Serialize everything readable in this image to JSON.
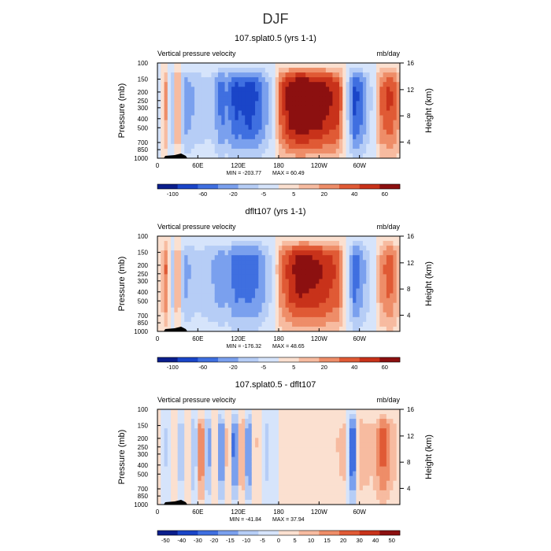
{
  "figure_title": "DJF",
  "chart_data": [
    {
      "type": "heatmap",
      "title": "107.splat0.5 (yrs 1-1)",
      "left_label": "Vertical pressure velocity",
      "right_label": "mb/day",
      "ylabel": "Pressure (mb)",
      "y2label": "Height (km)",
      "x_ticks": [
        "0",
        "60E",
        "120E",
        "180",
        "120W",
        "60W"
      ],
      "y_ticks": [
        "100",
        "150",
        "200",
        "250",
        "300",
        "400",
        "500",
        "700",
        "850",
        "1000"
      ],
      "y2_ticks": [
        "16",
        "12",
        "8",
        "4"
      ],
      "min_text": "MIN = -203.77",
      "max_text": "MAX = 60.49",
      "colorbar_labels": [
        "-100",
        "-60",
        "-20",
        "-5",
        "5",
        "20",
        "40",
        "60"
      ],
      "vmin": -203.77,
      "vmax": 60.49,
      "colors": {
        "neg": [
          "#0a1e8c",
          "#1a45c8",
          "#3f6fe0",
          "#7aa0ee",
          "#b6cdf6",
          "#d6e4fb"
        ],
        "pos": [
          "#fbe0d0",
          "#f7bba0",
          "#ee8d68",
          "#e05a35",
          "#c8321a",
          "#8c1010"
        ]
      },
      "profile_lon": [
        0,
        15,
        22,
        30,
        40,
        60,
        80,
        95,
        105,
        115,
        125,
        135,
        150,
        165,
        180,
        195,
        210,
        240,
        270,
        280,
        292,
        300,
        315,
        330,
        345,
        359
      ],
      "profile_omega": [
        -10,
        20,
        -40,
        35,
        -60,
        -35,
        -30,
        -75,
        -60,
        -95,
        -85,
        -100,
        -80,
        -40,
        20,
        38,
        45,
        40,
        30,
        -5,
        -90,
        -80,
        -30,
        20,
        30,
        15
      ],
      "profile_pressure": [
        100,
        150,
        200,
        250,
        300,
        400,
        500,
        700,
        850,
        1000
      ],
      "profile_weight": [
        0.05,
        0.25,
        0.55,
        0.75,
        0.9,
        1.0,
        0.95,
        0.85,
        0.6,
        0.25
      ]
    },
    {
      "type": "heatmap",
      "title": "dflt107 (yrs 1-1)",
      "left_label": "Vertical pressure velocity",
      "right_label": "mb/day",
      "ylabel": "Pressure (mb)",
      "y2label": "Height (km)",
      "x_ticks": [
        "0",
        "60E",
        "120E",
        "180",
        "120W",
        "60W"
      ],
      "y_ticks": [
        "100",
        "150",
        "200",
        "250",
        "300",
        "400",
        "500",
        "700",
        "850",
        "1000"
      ],
      "y2_ticks": [
        "16",
        "12",
        "8",
        "4"
      ],
      "min_text": "MIN = -176.32",
      "max_text": "MAX = 48.65",
      "colorbar_labels": [
        "-100",
        "-60",
        "-20",
        "-5",
        "5",
        "20",
        "40",
        "60"
      ],
      "vmin": -176.32,
      "vmax": 48.65,
      "colors": {
        "neg": [
          "#0a1e8c",
          "#1a45c8",
          "#3f6fe0",
          "#7aa0ee",
          "#b6cdf6",
          "#d6e4fb"
        ],
        "pos": [
          "#fbe0d0",
          "#f7bba0",
          "#ee8d68",
          "#e05a35",
          "#c8321a",
          "#8c1010"
        ]
      },
      "profile_lon": [
        0,
        15,
        22,
        30,
        40,
        60,
        80,
        95,
        105,
        115,
        125,
        135,
        150,
        165,
        180,
        195,
        210,
        240,
        270,
        280,
        292,
        300,
        315,
        330,
        345,
        359
      ],
      "profile_omega": [
        -5,
        25,
        -35,
        30,
        -55,
        -30,
        -45,
        -60,
        -50,
        -80,
        -75,
        -85,
        -70,
        -35,
        15,
        30,
        38,
        35,
        25,
        -5,
        -80,
        -70,
        -25,
        15,
        25,
        10
      ],
      "profile_pressure": [
        100,
        150,
        200,
        250,
        300,
        400,
        500,
        700,
        850,
        1000
      ],
      "profile_weight": [
        0.05,
        0.25,
        0.55,
        0.75,
        0.9,
        1.0,
        0.95,
        0.85,
        0.6,
        0.25
      ]
    },
    {
      "type": "heatmap",
      "title": "107.splat0.5 - dflt107",
      "left_label": "Vertical pressure velocity",
      "right_label": "mb/day",
      "ylabel": "Pressure (mb)",
      "y2label": "Height (km)",
      "x_ticks": [
        "0",
        "60E",
        "120E",
        "180",
        "120W",
        "60W"
      ],
      "y_ticks": [
        "100",
        "150",
        "200",
        "250",
        "300",
        "400",
        "500",
        "700",
        "850",
        "1000"
      ],
      "y2_ticks": [
        "16",
        "12",
        "8",
        "4"
      ],
      "min_text": "MIN = -41.84",
      "max_text": "MAX = 37.94",
      "colorbar_labels": [
        "-50",
        "-40",
        "-30",
        "-20",
        "-15",
        "-10",
        "-5",
        "0",
        "5",
        "10",
        "15",
        "20",
        "30",
        "40",
        "50"
      ],
      "vmin": -41.84,
      "vmax": 37.94,
      "colors": {
        "neg": [
          "#0a1e8c",
          "#1a45c8",
          "#3f6fe0",
          "#7aa0ee",
          "#b6cdf6",
          "#d6e4fb"
        ],
        "pos": [
          "#fbe0d0",
          "#f7bba0",
          "#ee8d68",
          "#e05a35",
          "#c8321a",
          "#8c1010"
        ]
      },
      "profile_lon": [
        0,
        15,
        25,
        35,
        45,
        55,
        65,
        75,
        85,
        95,
        105,
        115,
        125,
        135,
        145,
        160,
        180,
        220,
        260,
        280,
        290,
        300,
        320,
        335,
        350,
        359
      ],
      "profile_omega": [
        5,
        -10,
        10,
        -15,
        10,
        -20,
        30,
        -25,
        15,
        -30,
        20,
        -35,
        25,
        -30,
        10,
        -10,
        0,
        3,
        5,
        10,
        -35,
        12,
        8,
        25,
        10,
        5
      ],
      "profile_pressure": [
        100,
        150,
        200,
        250,
        300,
        400,
        500,
        700,
        850,
        1000
      ],
      "profile_weight": [
        0.05,
        0.25,
        0.55,
        0.75,
        0.9,
        1.0,
        0.95,
        0.85,
        0.6,
        0.25
      ]
    }
  ]
}
